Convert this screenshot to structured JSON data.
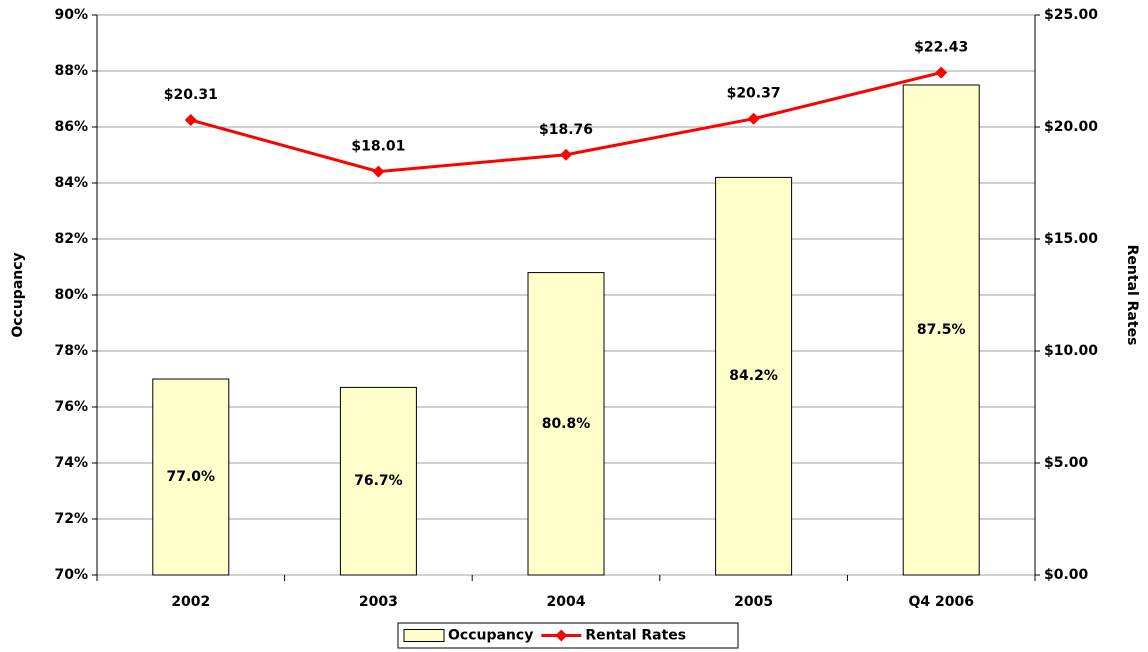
{
  "chart_data": {
    "type": "bar",
    "categories": [
      "2002",
      "2003",
      "2004",
      "2005",
      "Q4 2006"
    ],
    "series": [
      {
        "name": "Occupancy",
        "type": "bar",
        "color": "#ffffcc",
        "values": [
          77.0,
          76.7,
          80.8,
          84.2,
          87.5
        ],
        "value_labels": [
          "77.0%",
          "76.7%",
          "80.8%",
          "84.2%",
          "87.5%"
        ]
      },
      {
        "name": "Rental Rates",
        "type": "line",
        "axis": "y2",
        "color": "#ff0000",
        "values": [
          20.31,
          18.01,
          18.76,
          20.37,
          22.43
        ],
        "value_labels": [
          "$20.31",
          "$18.01",
          "$18.76",
          "$20.37",
          "$22.43"
        ]
      }
    ],
    "ylabel": "Occupancy",
    "y2label": "Rental Rates",
    "ylim": [
      70,
      90
    ],
    "yticks": [
      {
        "value": 70,
        "label": "70%"
      },
      {
        "value": 72,
        "label": "72%"
      },
      {
        "value": 74,
        "label": "74%"
      },
      {
        "value": 76,
        "label": "76%"
      },
      {
        "value": 78,
        "label": "78%"
      },
      {
        "value": 80,
        "label": "80%"
      },
      {
        "value": 82,
        "label": "82%"
      },
      {
        "value": 84,
        "label": "84%"
      },
      {
        "value": 86,
        "label": "86%"
      },
      {
        "value": 88,
        "label": "88%"
      },
      {
        "value": 90,
        "label": "90%"
      }
    ],
    "y2lim": [
      0,
      25
    ],
    "y2ticks": [
      {
        "value": 0,
        "label": "$0.00"
      },
      {
        "value": 5,
        "label": "$5.00"
      },
      {
        "value": 10,
        "label": "$10.00"
      },
      {
        "value": 15,
        "label": "$15.00"
      },
      {
        "value": 20,
        "label": "$20.00"
      },
      {
        "value": 25,
        "label": "$25.00"
      }
    ],
    "grid": true,
    "legend": "bottom"
  }
}
